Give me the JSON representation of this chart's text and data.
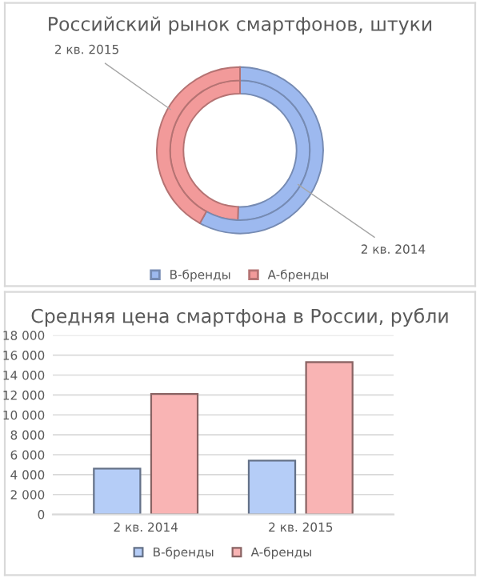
{
  "chart_data": [
    {
      "type": "donut",
      "title": "Российский рынок смартфонов, штуки",
      "categories": [
        "B-бренды",
        "A-бренды"
      ],
      "colors": [
        "#9db9ef",
        "#f29a9a"
      ],
      "legend": "bottom",
      "series": [
        {
          "name": "2 кв. 2014",
          "values": [
            50.5,
            49.5
          ]
        },
        {
          "name": "2 кв. 2015",
          "values": [
            58,
            42
          ]
        }
      ]
    },
    {
      "type": "bar",
      "title": "Средняя цена смартфона в России, рубли",
      "categories": [
        "2 кв. 2014",
        "2 кв. 2015"
      ],
      "legend": "bottom",
      "grid": "y",
      "ylim": [
        0,
        18000
      ],
      "yticks": [
        0,
        {
          "value": 2000,
          "label": "2 000"
        },
        {
          "value": 4000,
          "label": "4 000"
        },
        {
          "value": 6000,
          "label": "6 000"
        },
        {
          "value": 8000,
          "label": "8 000"
        },
        {
          "value": 10000,
          "label": "10 000"
        },
        {
          "value": 12000,
          "label": "12 000"
        },
        {
          "value": 14000,
          "label": "14 000"
        },
        {
          "value": 16000,
          "label": "16 000"
        },
        {
          "value": 18000,
          "label": "18 000"
        }
      ],
      "series": [
        {
          "name": "B-бренды",
          "color": "#b5cdf7",
          "values": [
            4600,
            5400
          ]
        },
        {
          "name": "A-бренды",
          "color": "#f9b4b4",
          "values": [
            12100,
            15300
          ]
        }
      ]
    }
  ]
}
